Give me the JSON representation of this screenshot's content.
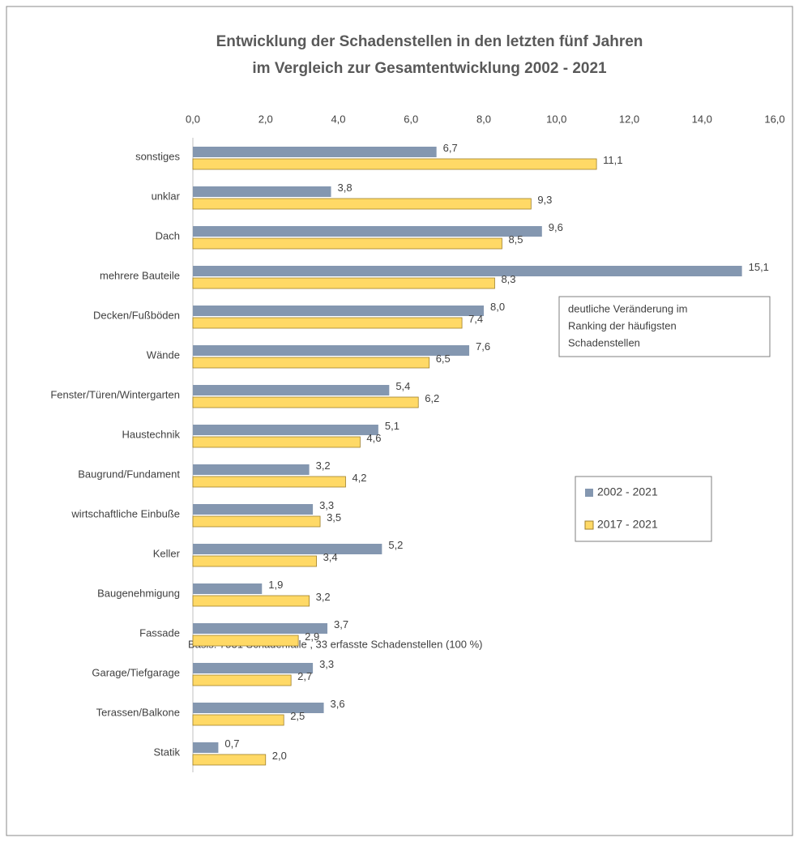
{
  "chart_data": {
    "type": "bar",
    "orientation": "horizontal",
    "title": [
      "Entwicklung der Schadenstellen in den letzten fünf Jahren",
      "im Vergleich zur Gesamtentwicklung 2002 - 2021"
    ],
    "categories": [
      "sonstiges",
      "unklar",
      "Dach",
      "mehrere Bauteile",
      "Decken/Fußböden",
      "Wände",
      "Fenster/Türen/Wintergarten",
      "Haustechnik",
      "Baugrund/Fundament",
      "wirtschaftliche Einbuße",
      "Keller",
      "Baugenehmigung",
      "Fassade",
      "Garage/Tiefgarage",
      "Terassen/Balkone",
      "Statik"
    ],
    "series": [
      {
        "name": "2002 - 2021",
        "color": "#8497b0",
        "values": [
          6.7,
          3.8,
          9.6,
          15.1,
          8.0,
          7.6,
          5.4,
          5.1,
          3.2,
          3.3,
          5.2,
          1.9,
          3.7,
          3.3,
          3.6,
          0.7
        ],
        "value_labels": [
          "6,7",
          "3,8",
          "9,6",
          "15,1",
          "8,0",
          "7,6",
          "5,4",
          "5,1",
          "3,2",
          "3,3",
          "5,2",
          "1,9",
          "3,7",
          "3,3",
          "3,6",
          "0,7"
        ]
      },
      {
        "name": "2017 - 2021",
        "color": "#ffd966",
        "values": [
          11.1,
          9.3,
          8.5,
          8.3,
          7.4,
          6.5,
          6.2,
          4.6,
          4.2,
          3.5,
          3.4,
          3.2,
          2.9,
          2.7,
          2.5,
          2.0
        ],
        "value_labels": [
          "11,1",
          "9,3",
          "8,5",
          "8,3",
          "7,4",
          "6,5",
          "6,2",
          "4,6",
          "4,2",
          "3,5",
          "3,4",
          "3,2",
          "2,9",
          "2,7",
          "2,5",
          "2,0"
        ]
      }
    ],
    "xlim": [
      0,
      16
    ],
    "xticks": [
      {
        "value": 0,
        "label": "0,0"
      },
      {
        "value": 2,
        "label": "2,0"
      },
      {
        "value": 4,
        "label": "4,0"
      },
      {
        "value": 6,
        "label": "6,0"
      },
      {
        "value": 8,
        "label": "8,0"
      },
      {
        "value": 10,
        "label": "10,0"
      },
      {
        "value": 12,
        "label": "12,0"
      },
      {
        "value": 14,
        "label": "14,0"
      },
      {
        "value": 16,
        "label": "16,0"
      }
    ],
    "annotation": [
      "deutliche Veränderung im",
      "Ranking der häufigsten",
      "Schadenstellen"
    ],
    "footnote": "Basis: 7531 Schadenfälle , 33 erfasste Schadenstellen (100 %)",
    "grid": false,
    "legend": "right"
  }
}
